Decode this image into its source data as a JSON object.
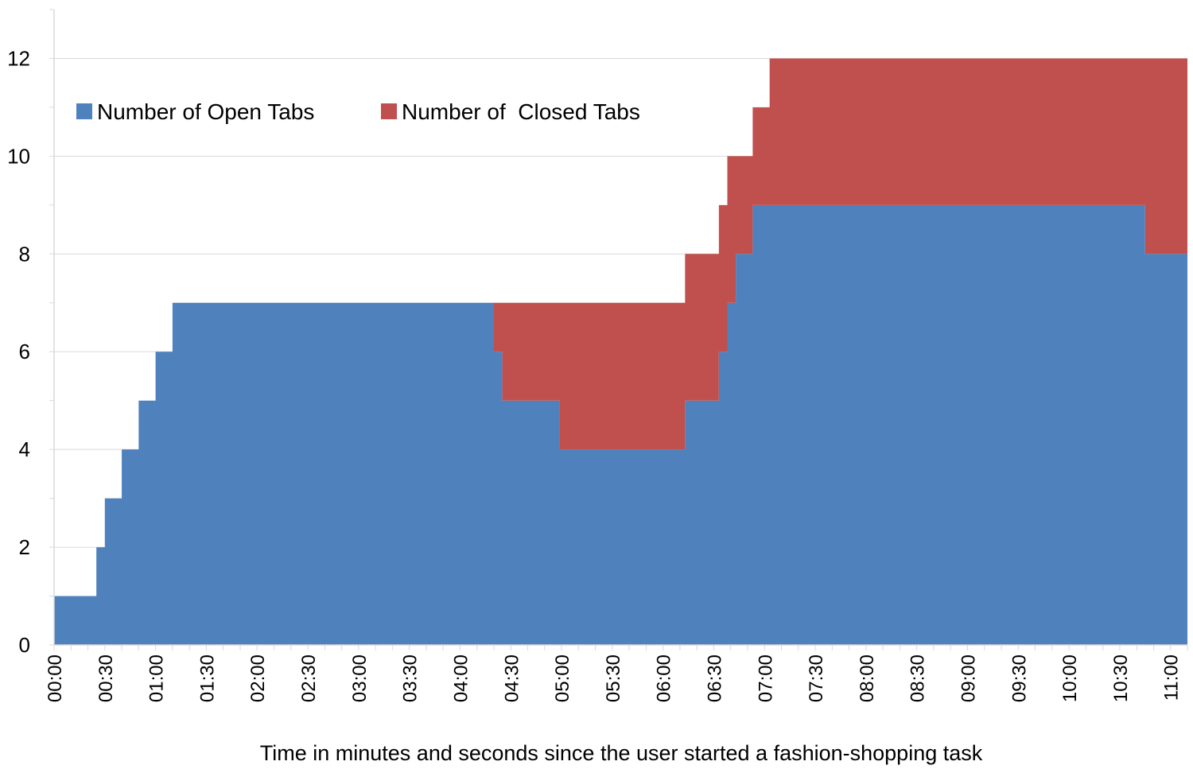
{
  "chart_data": {
    "type": "area",
    "step": true,
    "stacked": true,
    "title": "",
    "xlabel": "Time in minutes and seconds since the user started a fashion-shopping task",
    "ylabel": "",
    "xunit": "seconds",
    "xlim": [
      0,
      670
    ],
    "ylim": [
      0,
      13
    ],
    "y_ticks": [
      0,
      2,
      4,
      6,
      8,
      10,
      12
    ],
    "grid": true,
    "legend_position": "top-left",
    "x_tick_labels": [
      "00:00",
      "00:30",
      "01:00",
      "01:30",
      "02:00",
      "02:30",
      "03:00",
      "03:30",
      "04:00",
      "04:30",
      "05:00",
      "05:30",
      "06:00",
      "06:30",
      "07:00",
      "07:30",
      "08:00",
      "08:30",
      "09:00",
      "09:30",
      "10:00",
      "10:30",
      "11:00"
    ],
    "x_tick_seconds": [
      0,
      30,
      60,
      90,
      120,
      150,
      180,
      210,
      240,
      270,
      300,
      330,
      360,
      390,
      420,
      450,
      480,
      510,
      540,
      570,
      600,
      630,
      660
    ],
    "series": [
      {
        "name": "Number of Open Tabs",
        "color": "#4F81BD",
        "x": [
          0,
          25,
          30,
          40,
          50,
          60,
          70,
          260,
          265,
          299,
          373,
          393,
          398,
          403,
          413,
          423,
          645
        ],
        "values": [
          1,
          2,
          3,
          4,
          5,
          6,
          7,
          6,
          5,
          4,
          5,
          6,
          7,
          8,
          9,
          9,
          8
        ]
      },
      {
        "name": "Number of  Closed Tabs",
        "color": "#C0504D",
        "x": [
          0,
          260,
          265,
          299,
          373,
          393,
          398,
          403,
          413,
          423,
          645
        ],
        "values": [
          0,
          1,
          2,
          3,
          3,
          3,
          3,
          2,
          2,
          3,
          4
        ]
      }
    ]
  }
}
